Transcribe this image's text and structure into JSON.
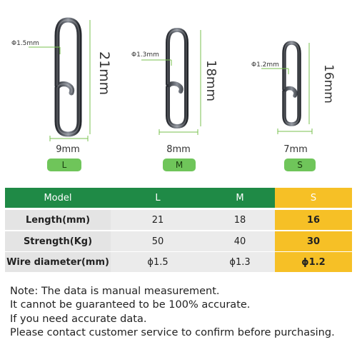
{
  "products": [
    {
      "size": "L",
      "diameter": "Φ1.5mm",
      "length": "21mm",
      "width": "9mm"
    },
    {
      "size": "M",
      "diameter": "Φ1.3mm",
      "length": "18mm",
      "width": "8mm"
    },
    {
      "size": "S",
      "diameter": "Φ1.2mm",
      "length": "16mm",
      "width": "7mm"
    }
  ],
  "table": {
    "headers": [
      "Model",
      "L",
      "M",
      "S"
    ],
    "rows": [
      {
        "label": "Length(mm)",
        "values": [
          "21",
          "18",
          "16"
        ]
      },
      {
        "label": "Strength(Kg)",
        "values": [
          "50",
          "40",
          "30"
        ]
      },
      {
        "label": "Wire diameter(mm)",
        "values": [
          "ϕ1.5",
          "ϕ1.3",
          "ϕ1.2"
        ]
      }
    ]
  },
  "notes": [
    "Note: The data is manual measurement.",
    "It cannot be guaranteed to be 100% accurate.",
    "If you need accurate data.",
    "Please contact customer service to confirm before purchasing."
  ],
  "colors": {
    "green_header": "#1f8a46",
    "highlight": "#f6c026",
    "pill": "#6fc55a",
    "dimension_line": "#79c24f"
  }
}
